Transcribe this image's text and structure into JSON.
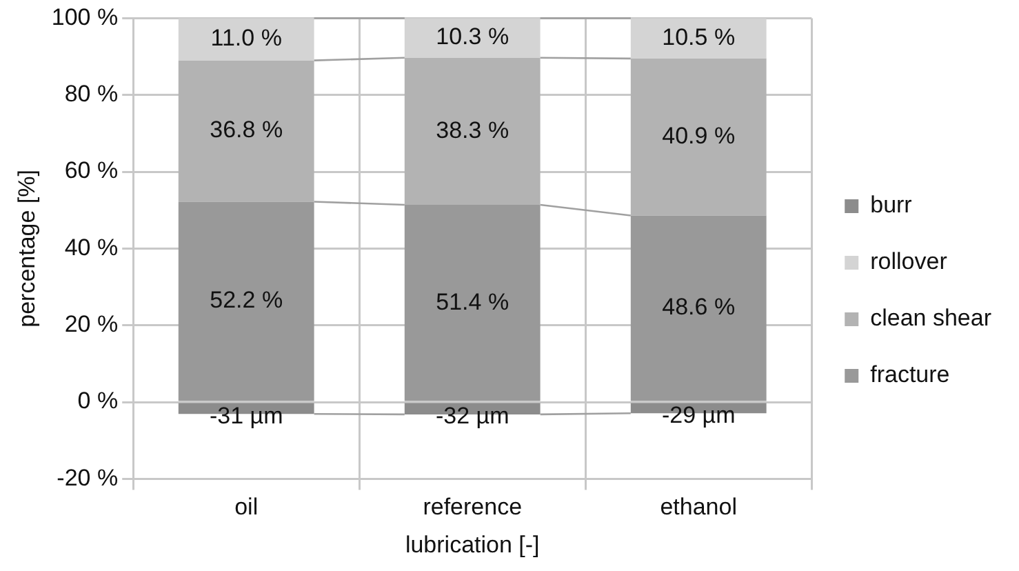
{
  "chart_data": {
    "type": "bar",
    "stacked": true,
    "xlabel": "lubrication [-]",
    "ylabel": "percentage [%]",
    "categories": [
      "oil",
      "reference",
      "ethanol"
    ],
    "series": [
      {
        "name": "fracture",
        "color": "#999999",
        "values": [
          52.2,
          51.4,
          48.6
        ],
        "value_labels": [
          "52.2 %",
          "51.4 %",
          "48.6 %"
        ]
      },
      {
        "name": "clean shear",
        "color": "#b3b3b3",
        "values": [
          36.8,
          38.3,
          40.9
        ],
        "value_labels": [
          "36.8 %",
          "38.3 %",
          "40.9 %"
        ]
      },
      {
        "name": "rollover",
        "color": "#d4d4d4",
        "values": [
          11.0,
          10.3,
          10.5
        ],
        "value_labels": [
          "11.0 %",
          "10.3 %",
          "10.5 %"
        ]
      },
      {
        "name": "burr",
        "color": "#8c8c8c",
        "values": [
          -3.1,
          -3.2,
          -2.9
        ]
      }
    ],
    "annotations": [
      {
        "text": "-31 µm",
        "x": "oil",
        "y": -3.1
      },
      {
        "text": "-32 µm",
        "x": "reference",
        "y": -3.2
      },
      {
        "text": "-29 µm",
        "x": "ethanol",
        "y": -2.9
      }
    ],
    "ylim": [
      -20,
      100
    ],
    "yticks": [
      {
        "value": -20,
        "label": "-20 %"
      },
      {
        "value": 0,
        "label": "0 %"
      },
      {
        "value": 20,
        "label": "20 %"
      },
      {
        "value": 40,
        "label": "40 %"
      },
      {
        "value": 60,
        "label": "60 %"
      },
      {
        "value": 80,
        "label": "80 %"
      },
      {
        "value": 100,
        "label": "100 %"
      }
    ],
    "grid": true,
    "legend": "right"
  }
}
